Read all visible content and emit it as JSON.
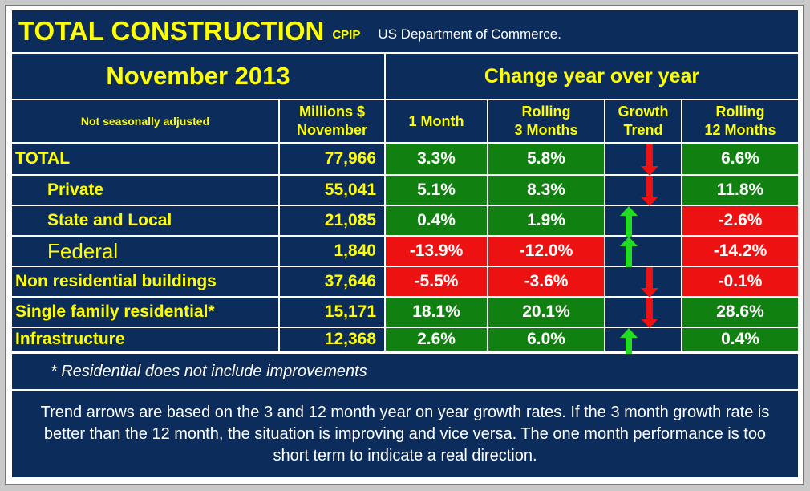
{
  "header": {
    "title": "TOTAL CONSTRUCTION",
    "tag": "CPIP",
    "source": "US Department of Commerce."
  },
  "period": "November 2013",
  "change_header": "Change year over year",
  "columns": {
    "label_note": "Not seasonally adjusted",
    "millions": "Millions $\nNovember",
    "one_month": "1 Month",
    "rolling3": "Rolling\n3 Months",
    "growth": "Growth\nTrend",
    "rolling12": "Rolling\n12 Months"
  },
  "colors": {
    "navy": "#0c2c5c",
    "yellow": "#ffff00",
    "green": "#108010",
    "red": "#ee1111",
    "up_arrow": "#22dd22",
    "down_arrow": "#ee1111"
  },
  "chart_data": {
    "type": "table",
    "title": "TOTAL CONSTRUCTION CPIP - November 2013",
    "rows": [
      {
        "label": "TOTAL",
        "millions": "77,966",
        "one_month": "3.3%",
        "rolling3": "5.8%",
        "trend": "down",
        "rolling12": "6.6%",
        "c1": "green",
        "c3": "green",
        "c12": "green"
      },
      {
        "label": "Private",
        "millions": "55,041",
        "one_month": "5.1%",
        "rolling3": "8.3%",
        "trend": "down",
        "rolling12": "11.8%",
        "c1": "green",
        "c3": "green",
        "c12": "green"
      },
      {
        "label": "State and Local",
        "millions": "21,085",
        "one_month": "0.4%",
        "rolling3": "1.9%",
        "trend": "up",
        "rolling12": "-2.6%",
        "c1": "green",
        "c3": "green",
        "c12": "red"
      },
      {
        "label": "Federal",
        "millions": "1,840",
        "one_month": "-13.9%",
        "rolling3": "-12.0%",
        "trend": "up",
        "rolling12": "-14.2%",
        "c1": "red",
        "c3": "red",
        "c12": "red"
      },
      {
        "label": "Non residential buildings",
        "millions": "37,646",
        "one_month": "-5.5%",
        "rolling3": "-3.6%",
        "trend": "down",
        "rolling12": "-0.1%",
        "c1": "red",
        "c3": "red",
        "c12": "red"
      },
      {
        "label": "Single family residential*",
        "millions": "15,171",
        "one_month": "18.1%",
        "rolling3": "20.1%",
        "trend": "down",
        "rolling12": "28.6%",
        "c1": "green",
        "c3": "green",
        "c12": "green"
      },
      {
        "label": "Infrastructure",
        "millions": "12,368",
        "one_month": "2.6%",
        "rolling3": "6.0%",
        "trend": "up",
        "rolling12": "0.4%",
        "c1": "green",
        "c3": "green",
        "c12": "green"
      }
    ]
  },
  "footnote": "* Residential does not include improvements",
  "explanation": "Trend arrows are based on the 3 and 12 month year on year growth rates. If the 3 month growth rate is better than the 12 month, the situation is improving and vice versa. The one month performance is too short term to indicate a real direction."
}
